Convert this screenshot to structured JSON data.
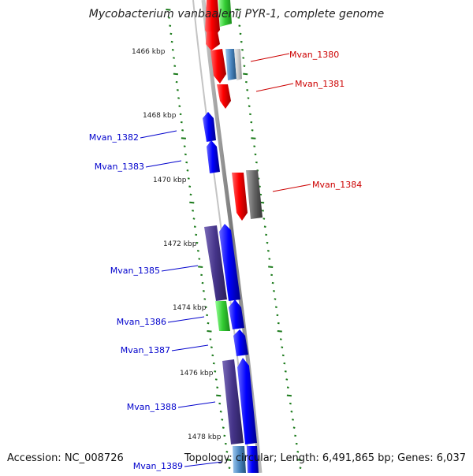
{
  "title": "Mycobacterium vanbaalenii PYR-1, complete genome",
  "footer": {
    "accession": "Accession: NC_008726",
    "stats": "Topology: circular; Length: 6,491,865 bp; Genes: 6,037"
  },
  "colors": {
    "forward_gene": "#e60000",
    "reverse_gene": "#0000dd",
    "forward_label": "#cc0000",
    "reverse_label": "#0000cc",
    "backbone": "#888888",
    "tick": "#1a7a1a",
    "rna": "#33cc33",
    "cluster_purple": "#443388",
    "pseudo_gray": "#666666",
    "steel_blue": "#4a86c0"
  },
  "ruler_labels": [
    "1466 kbp",
    "1468 kbp",
    "1470 kbp",
    "1472 kbp",
    "1474 kbp",
    "1476 kbp",
    "1478 kbp"
  ],
  "gene_labels": {
    "forward": [
      "Mvan_1380",
      "Mvan_1381",
      "Mvan_1384"
    ],
    "reverse": [
      "Mvan_1382",
      "Mvan_1383",
      "Mvan_1385",
      "Mvan_1386",
      "Mvan_1387",
      "Mvan_1388",
      "Mvan_1389"
    ]
  }
}
